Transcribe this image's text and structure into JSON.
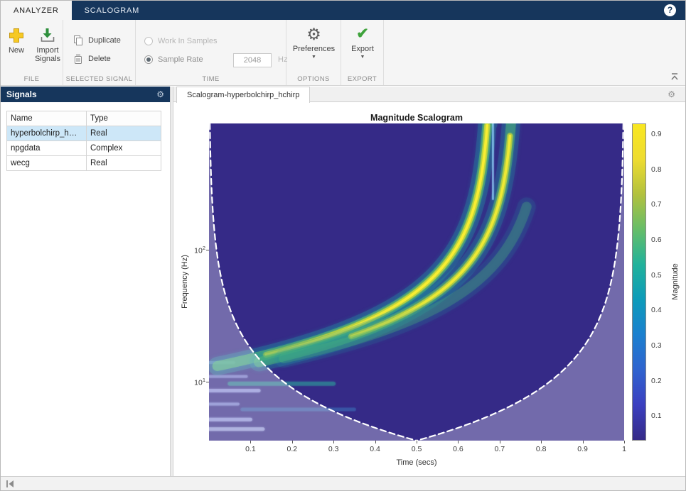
{
  "app": {
    "window_tabs": [
      {
        "label": "ANALYZER",
        "active": true
      },
      {
        "label": "SCALOGRAM",
        "active": false
      }
    ],
    "help_label": "?"
  },
  "toolbar": {
    "file": {
      "section_label": "FILE",
      "new_label": "New",
      "import_label": "Import Signals"
    },
    "selected_signal": {
      "section_label": "SELECTED SIGNAL",
      "duplicate_label": "Duplicate",
      "delete_label": "Delete"
    },
    "time": {
      "section_label": "TIME",
      "work_in_samples_label": "Work In Samples",
      "sample_rate_label": "Sample Rate",
      "sample_rate_value": "2048",
      "unit_label": "Hz"
    },
    "options": {
      "section_label": "OPTIONS",
      "preferences_label": "Preferences"
    },
    "export": {
      "section_label": "EXPORT",
      "export_label": "Export"
    }
  },
  "signals_panel": {
    "title": "Signals",
    "columns": [
      "Name",
      "Type"
    ],
    "rows": [
      {
        "name": "hyperbolchirp_h…",
        "type": "Real",
        "selected": true
      },
      {
        "name": "npgdata",
        "type": "Complex",
        "selected": false
      },
      {
        "name": "wecg",
        "type": "Real",
        "selected": false
      }
    ]
  },
  "main": {
    "doc_tab_label": "Scalogram-hyperbolchirp_hchirp"
  },
  "chart_data": {
    "type": "heatmap",
    "title": "Magnitude Scalogram",
    "xlabel": "Time (secs)",
    "ylabel": "Frequency (Hz)",
    "colorbar_label": "Magnitude",
    "xlim": [
      0,
      1
    ],
    "x_ticks": [
      0.1,
      0.2,
      0.3,
      0.4,
      0.5,
      0.6,
      0.7,
      0.8,
      0.9,
      1
    ],
    "y_log": true,
    "flim": [
      3.6,
      900
    ],
    "y_ticks": [
      {
        "value": 10,
        "base": "10",
        "exp": "1"
      },
      {
        "value": 100,
        "base": "10",
        "exp": "2"
      }
    ],
    "clim": [
      0.03,
      0.93
    ],
    "colorbar_ticks": [
      0.1,
      0.2,
      0.3,
      0.4,
      0.5,
      0.6,
      0.7,
      0.8,
      0.9
    ],
    "colormap": [
      "#352a87",
      "#3b3fc0",
      "#2f63cf",
      "#1b80cf",
      "#0d9bba",
      "#21b29b",
      "#66bd68",
      "#b2c13e",
      "#eedc30",
      "#f9e721"
    ],
    "background_color": "#352a87",
    "coi": {
      "constant": 1.8,
      "shade_alpha": 0.3,
      "dash": [
        8,
        5
      ]
    },
    "ridges": [
      {
        "k": 8.7,
        "t1": 0.68,
        "t_start": 0.02,
        "intensity": 1.0,
        "core": true,
        "core_fmin": 16
      },
      {
        "k": 8.7,
        "t1": 0.737,
        "t_start": 0.12,
        "intensity": 0.8,
        "core": true,
        "core_fmin": 22
      },
      {
        "k": 9.5,
        "t1": 0.81,
        "t_start": 0.18,
        "intensity": 0.45,
        "core": false,
        "f_max": 220
      }
    ],
    "low_freq_bands": [
      {
        "f": 4.4,
        "t0": 0,
        "t1": 0.13,
        "color": "#9aa0dd",
        "width": 5,
        "alpha": 0.7
      },
      {
        "f": 5.2,
        "t0": 0,
        "t1": 0.1,
        "color": "#8f93d9",
        "width": 5,
        "alpha": 0.8
      },
      {
        "f": 6.8,
        "t0": 0,
        "t1": 0.07,
        "color": "#7e84d2",
        "width": 4,
        "alpha": 0.7
      },
      {
        "f": 8.6,
        "t0": 0,
        "t1": 0.12,
        "color": "#8f93d9",
        "width": 5,
        "alpha": 0.75
      },
      {
        "f": 11,
        "t0": 0,
        "t1": 0.09,
        "color": "#7e84d2",
        "width": 4,
        "alpha": 0.6
      },
      {
        "f": 14,
        "t0": 0,
        "t1": 0.06,
        "color": "#777fd0",
        "width": 4,
        "alpha": 0.5
      },
      {
        "f": 9.7,
        "t0": 0.05,
        "t1": 0.3,
        "color": "#2fae9f",
        "width": 6,
        "alpha": 0.35
      },
      {
        "f": 6.2,
        "t0": 0.08,
        "t1": 0.35,
        "color": "#3f8fd0",
        "width": 5,
        "alpha": 0.25
      }
    ],
    "streak": {
      "t": 0.684,
      "f_bottom": 240,
      "color": "rgba(150,215,255,0.85)"
    }
  }
}
